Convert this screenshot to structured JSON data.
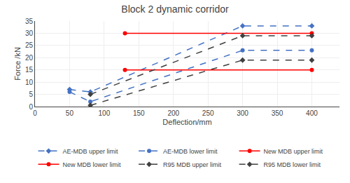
{
  "chart_data": {
    "type": "line",
    "title": "Block 2 dynamic corridor",
    "xlabel": "Deflection/mm",
    "ylabel": "Force /kN",
    "xlim": [
      0,
      440
    ],
    "ylim": [
      0,
      35
    ],
    "xticks": [
      0,
      50,
      100,
      150,
      200,
      250,
      300,
      350,
      400
    ],
    "yticks": [
      0,
      5,
      10,
      15,
      20,
      25,
      30,
      35
    ],
    "grid": true,
    "legend": "bottom",
    "series": [
      {
        "name": "AE-MDB upper limit",
        "color": "#4472C4",
        "line_style": "dashed",
        "marker": "diamond",
        "x": [
          50,
          80,
          300,
          400
        ],
        "values": [
          7,
          6,
          33,
          33
        ]
      },
      {
        "name": "AE-MDB lower limit",
        "color": "#4472C4",
        "line_style": "dashed",
        "marker": "circle",
        "x": [
          50,
          80,
          300,
          400
        ],
        "values": [
          6,
          2,
          23,
          23
        ]
      },
      {
        "name": "New MDB upper limit",
        "color": "#FF0000",
        "line_style": "solid",
        "marker": "circle",
        "x": [
          130,
          400
        ],
        "values": [
          30,
          30
        ]
      },
      {
        "name": "New MDB lower limit",
        "color": "#FF0000",
        "line_style": "solid",
        "marker": "circle",
        "x": [
          130,
          400
        ],
        "values": [
          15,
          15
        ]
      },
      {
        "name": "R95 MDB upper limit",
        "color": "#404040",
        "line_style": "dashed",
        "marker": "diamond",
        "x": [
          80,
          300,
          400
        ],
        "values": [
          5,
          29,
          29
        ]
      },
      {
        "name": "R95 MDB lower limit",
        "color": "#404040",
        "line_style": "dashed",
        "marker": "diamond",
        "x": [
          80,
          300,
          400
        ],
        "values": [
          0.5,
          19,
          19
        ]
      }
    ]
  }
}
